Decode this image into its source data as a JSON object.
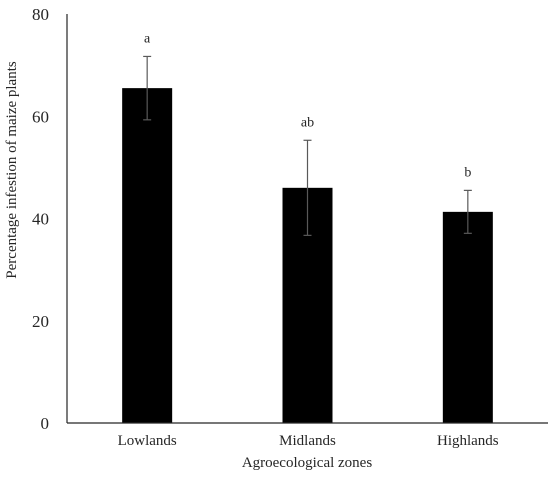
{
  "chart_data": {
    "type": "bar",
    "title": "",
    "xlabel": "Agroecological zones",
    "ylabel": "Percentage infestion of maize plants",
    "categories": [
      "Lowlands",
      "Midlands",
      "Highlands"
    ],
    "values": [
      65.5,
      46,
      41.3
    ],
    "error": [
      6.2,
      9.3,
      4.2
    ],
    "significance_letters": [
      "a",
      "ab",
      "b"
    ],
    "ylim": [
      0,
      80
    ],
    "yticks": [
      0,
      20,
      40,
      60,
      80
    ],
    "grid": false,
    "legend": "none",
    "bar_color": "#000000",
    "axis_color": "#262626"
  }
}
